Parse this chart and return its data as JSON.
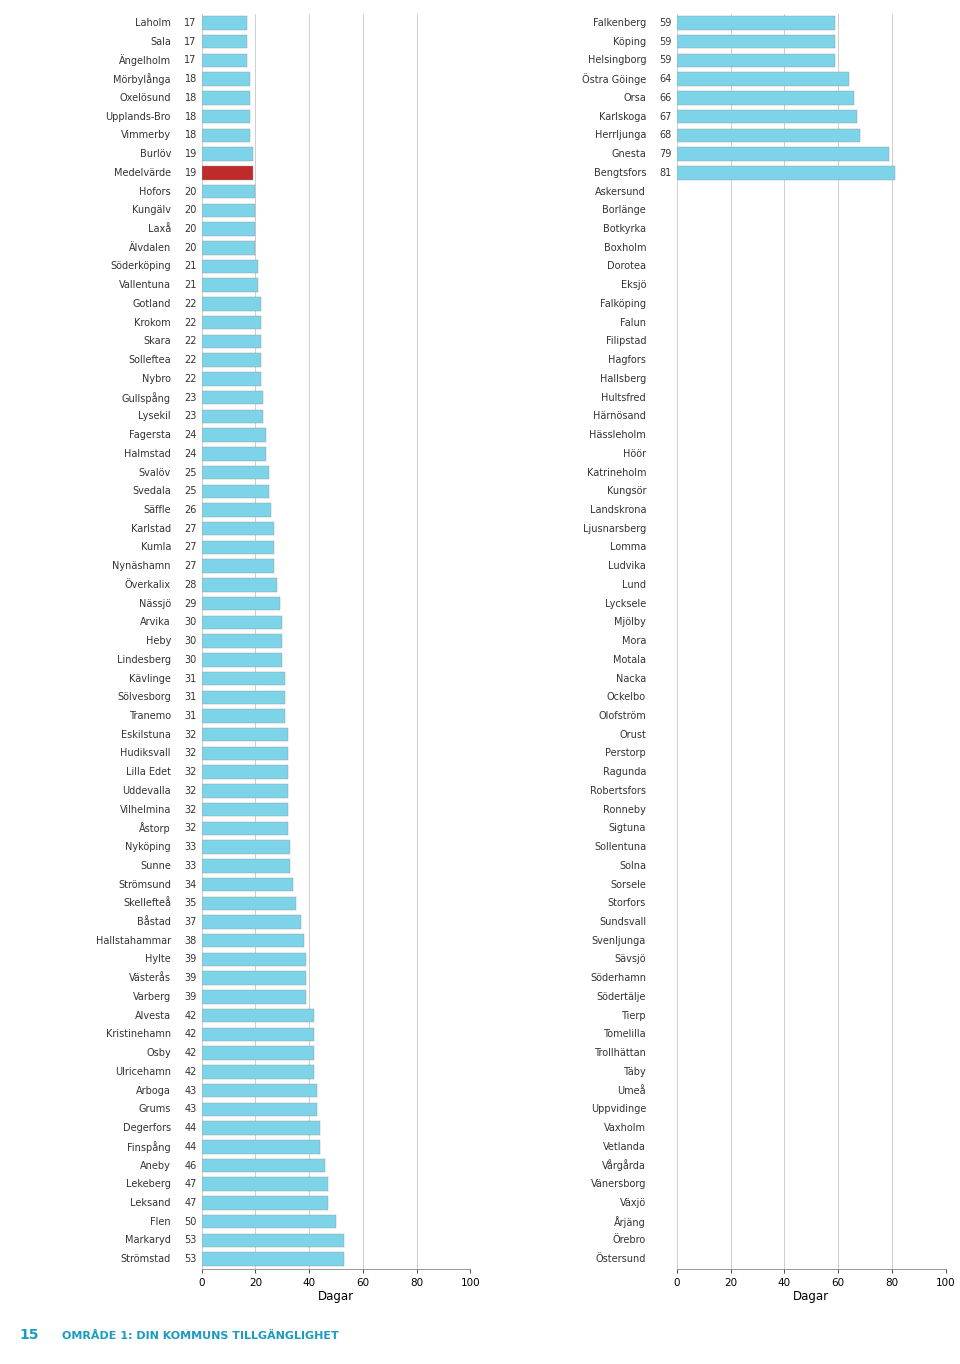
{
  "left_bars": [
    [
      "Laholm",
      17
    ],
    [
      "Sala",
      17
    ],
    [
      "Ängelholm",
      17
    ],
    [
      "Mörbylånga",
      18
    ],
    [
      "Oxelösund",
      18
    ],
    [
      "Upplands-Bro",
      18
    ],
    [
      "Vimmerby",
      18
    ],
    [
      "Burlöv",
      19
    ],
    [
      "Medelvärde",
      19
    ],
    [
      "Hofors",
      20
    ],
    [
      "Kungälv",
      20
    ],
    [
      "Laxå",
      20
    ],
    [
      "Älvdalen",
      20
    ],
    [
      "Söderköping",
      21
    ],
    [
      "Vallentuna",
      21
    ],
    [
      "Gotland",
      22
    ],
    [
      "Krokom",
      22
    ],
    [
      "Skara",
      22
    ],
    [
      "Solleftea",
      22
    ],
    [
      "Nybro",
      22
    ],
    [
      "Gullspång",
      23
    ],
    [
      "Lysekil",
      23
    ],
    [
      "Fagersta",
      24
    ],
    [
      "Halmstad",
      24
    ],
    [
      "Svalöv",
      25
    ],
    [
      "Svedala",
      25
    ],
    [
      "Säffle",
      26
    ],
    [
      "Karlstad",
      27
    ],
    [
      "Kumla",
      27
    ],
    [
      "Nynäshamn",
      27
    ],
    [
      "Överkalix",
      28
    ],
    [
      "Nässjö",
      29
    ],
    [
      "Arvika",
      30
    ],
    [
      "Heby",
      30
    ],
    [
      "Lindesberg",
      30
    ],
    [
      "Kävlinge",
      31
    ],
    [
      "Sölvesborg",
      31
    ],
    [
      "Tranemo",
      31
    ],
    [
      "Eskilstuna",
      32
    ],
    [
      "Hudiksvall",
      32
    ],
    [
      "Lilla Edet",
      32
    ],
    [
      "Uddevalla",
      32
    ],
    [
      "Vilhelmina",
      32
    ],
    [
      "Åstorp",
      32
    ],
    [
      "Nyköping",
      33
    ],
    [
      "Sunne",
      33
    ],
    [
      "Strömsund",
      34
    ],
    [
      "Skellefteå",
      35
    ],
    [
      "Båstad",
      37
    ],
    [
      "Hallstahammar",
      38
    ],
    [
      "Hylte",
      39
    ],
    [
      "Västerås",
      39
    ],
    [
      "Varberg",
      39
    ],
    [
      "Alvesta",
      42
    ],
    [
      "Kristinehamn",
      42
    ],
    [
      "Osby",
      42
    ],
    [
      "Ulricehamn",
      42
    ],
    [
      "Arboga",
      43
    ],
    [
      "Grums",
      43
    ],
    [
      "Degerfors",
      44
    ],
    [
      "Finspång",
      44
    ],
    [
      "Aneby",
      46
    ],
    [
      "Lekeberg",
      47
    ],
    [
      "Leksand",
      47
    ],
    [
      "Flen",
      50
    ],
    [
      "Markaryd",
      53
    ],
    [
      "Strömstad",
      53
    ]
  ],
  "right_bars": [
    [
      "Falkenberg",
      59
    ],
    [
      "Köping",
      59
    ],
    [
      "Helsingborg",
      59
    ],
    [
      "Östra Göinge",
      64
    ],
    [
      "Orsa",
      66
    ],
    [
      "Karlskoga",
      67
    ],
    [
      "Herrljunga",
      68
    ],
    [
      "Gnesta",
      79
    ],
    [
      "Bengtsfors",
      81
    ],
    [
      "Askersund",
      null
    ],
    [
      "Borlänge",
      null
    ],
    [
      "Botkyrka",
      null
    ],
    [
      "Boxholm",
      null
    ],
    [
      "Dorotea",
      null
    ],
    [
      "Eksjö",
      null
    ],
    [
      "Falköping",
      null
    ],
    [
      "Falun",
      null
    ],
    [
      "Filipstad",
      null
    ],
    [
      "Hagfors",
      null
    ],
    [
      "Hallsberg",
      null
    ],
    [
      "Hultsfred",
      null
    ],
    [
      "Härnösand",
      null
    ],
    [
      "Hässleholm",
      null
    ],
    [
      "Höör",
      null
    ],
    [
      "Katrineholm",
      null
    ],
    [
      "Kungsör",
      null
    ],
    [
      "Landskrona",
      null
    ],
    [
      "Ljusnarsberg",
      null
    ],
    [
      "Lomma",
      null
    ],
    [
      "Ludvika",
      null
    ],
    [
      "Lund",
      null
    ],
    [
      "Lycksele",
      null
    ],
    [
      "Mjölby",
      null
    ],
    [
      "Mora",
      null
    ],
    [
      "Motala",
      null
    ],
    [
      "Nacka",
      null
    ],
    [
      "Ockelbo",
      null
    ],
    [
      "Olofström",
      null
    ],
    [
      "Orust",
      null
    ],
    [
      "Perstorp",
      null
    ],
    [
      "Ragunda",
      null
    ],
    [
      "Robertsfors",
      null
    ],
    [
      "Ronneby",
      null
    ],
    [
      "Sigtuna",
      null
    ],
    [
      "Sollentuna",
      null
    ],
    [
      "Solna",
      null
    ],
    [
      "Sorsele",
      null
    ],
    [
      "Storfors",
      null
    ],
    [
      "Sundsvall",
      null
    ],
    [
      "Svenljunga",
      null
    ],
    [
      "Sävsjö",
      null
    ],
    [
      "Söderhamn",
      null
    ],
    [
      "Södertälje",
      null
    ],
    [
      "Tierp",
      null
    ],
    [
      "Tomelilla",
      null
    ],
    [
      "Trollhättan",
      null
    ],
    [
      "Täby",
      null
    ],
    [
      "Umeå",
      null
    ],
    [
      "Uppvidinge",
      null
    ],
    [
      "Vaxholm",
      null
    ],
    [
      "Vetlanda",
      null
    ],
    [
      "Vårgårda",
      null
    ],
    [
      "Vänersborg",
      null
    ],
    [
      "Växjö",
      null
    ],
    [
      "Årjäng",
      null
    ],
    [
      "Örebro",
      null
    ],
    [
      "Östersund",
      null
    ]
  ],
  "bar_color": "#7dd4e8",
  "medelvarde_color": "#bf2a2a",
  "xticks": [
    0,
    20,
    40,
    60,
    80,
    100
  ],
  "xlabel": "Dagar",
  "footer_number": "15",
  "footer_text": "OMRÅDE 1: DIN KOMMUNS TILLGÄNGLIGHET",
  "footer_color": "#1a9bbf"
}
